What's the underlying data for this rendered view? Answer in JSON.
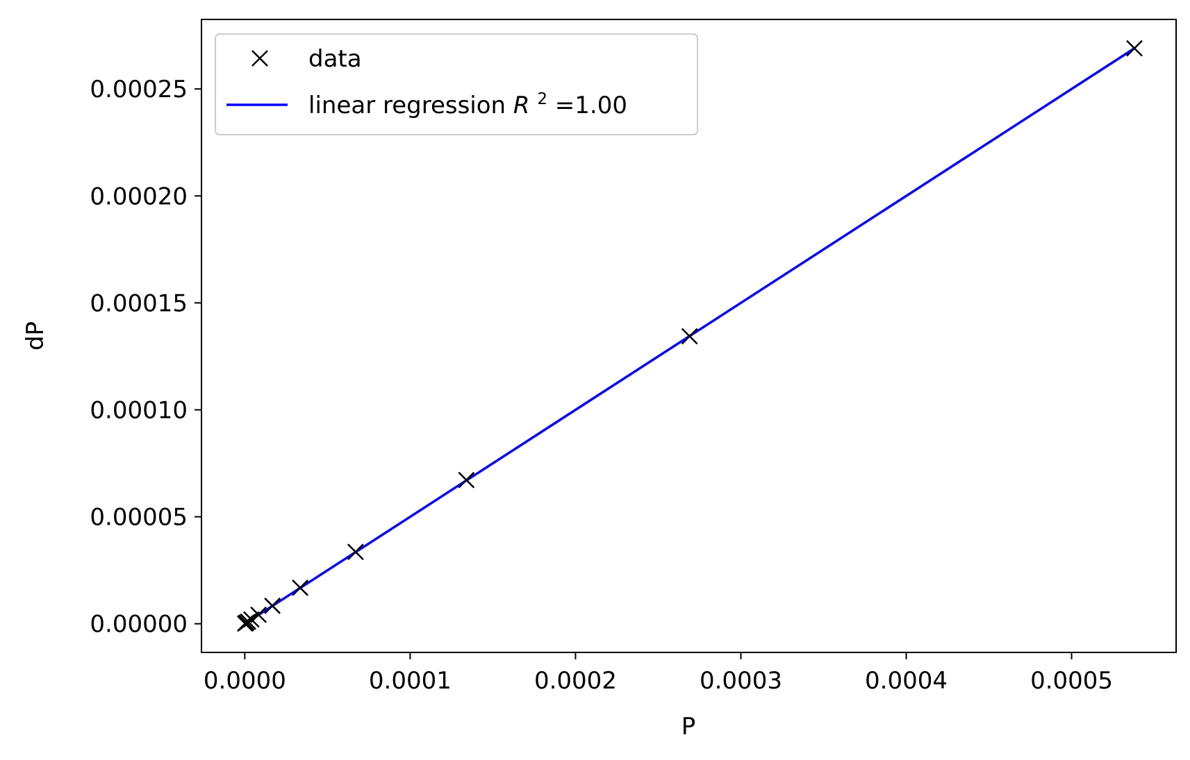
{
  "chart_data": {
    "type": "scatter",
    "title": "",
    "xlabel": "P",
    "ylabel": "dP",
    "xlim": [
      -2.62e-05,
      0.0005632
    ],
    "ylim": [
      -1.34e-05,
      0.0002825
    ],
    "x_ticks": [
      {
        "value": 0.0,
        "label": "0.0000"
      },
      {
        "value": 0.0001,
        "label": "0.0001"
      },
      {
        "value": 0.0002,
        "label": "0.0002"
      },
      {
        "value": 0.0003,
        "label": "0.0003"
      },
      {
        "value": 0.0004,
        "label": "0.0004"
      },
      {
        "value": 0.0005,
        "label": "0.0005"
      }
    ],
    "y_ticks": [
      {
        "value": 0.0,
        "label": "0.00000"
      },
      {
        "value": 5e-05,
        "label": "0.00005"
      },
      {
        "value": 0.0001,
        "label": "0.00010"
      },
      {
        "value": 0.00015,
        "label": "0.00015"
      },
      {
        "value": 0.0002,
        "label": "0.00020"
      },
      {
        "value": 0.00025,
        "label": "0.00025"
      }
    ],
    "grid": false,
    "legend_position": "top-left",
    "series": [
      {
        "name": "data",
        "kind": "markers",
        "marker": "x",
        "color": "#000000",
        "points": [
          {
            "x": 2e-07,
            "y": 1e-07
          },
          {
            "x": 5e-07,
            "y": 2e-07
          },
          {
            "x": 1e-06,
            "y": 5e-07
          },
          {
            "x": 2e-06,
            "y": 1e-06
          },
          {
            "x": 4e-06,
            "y": 2e-06
          },
          {
            "x": 8.3e-06,
            "y": 4.2e-06
          },
          {
            "x": 1.67e-05,
            "y": 8.4e-06
          },
          {
            "x": 3.35e-05,
            "y": 1.68e-05
          },
          {
            "x": 6.7e-05,
            "y": 3.36e-05
          },
          {
            "x": 0.000134,
            "y": 6.72e-05
          },
          {
            "x": 0.000269,
            "y": 0.0001344
          },
          {
            "x": 0.000538,
            "y": 0.000269
          }
        ]
      },
      {
        "name": "linear regression R²=1.00",
        "kind": "line",
        "color": "#0000ff",
        "points": [
          {
            "x": 0.0,
            "y": 0.0
          },
          {
            "x": 0.000538,
            "y": 0.000269
          }
        ]
      }
    ],
    "legend": {
      "entries": [
        {
          "label": "data",
          "kind": "marker"
        },
        {
          "label": "linear regression ",
          "math_symbol": "R",
          "superscript": "2",
          "suffix": "=1.00",
          "kind": "line"
        }
      ]
    }
  }
}
